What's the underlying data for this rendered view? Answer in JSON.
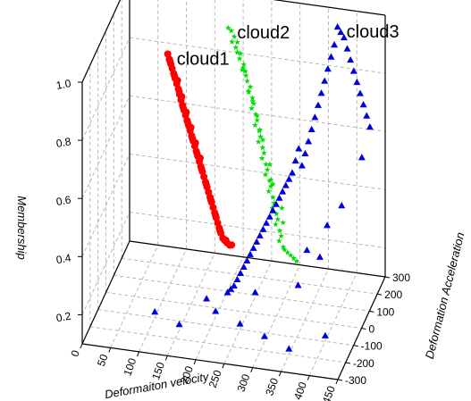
{
  "chart_data": {
    "type": "scatter",
    "projection": "3d",
    "title": "",
    "xlabel": "Deformaiton velocity",
    "ylabel": "Deformation Acceleration",
    "zlabel": "Membership",
    "xlim": [
      0,
      450
    ],
    "ylim": [
      -300,
      300
    ],
    "zlim": [
      0.1,
      1.0
    ],
    "xticks": [
      "0",
      "50",
      "100",
      "150",
      "200",
      "250",
      "300",
      "350",
      "400",
      "450"
    ],
    "yticks": [
      "-300",
      "-200",
      "-100",
      "0",
      "100",
      "200",
      "300"
    ],
    "zticks": [
      "0.2",
      "0.4",
      "0.6",
      "0.8",
      "1.0"
    ],
    "grid": true,
    "series": [
      {
        "name": "cloud1",
        "marker": "circle",
        "color": "#ff0000",
        "points": [
          [
            120,
            -80,
            1.0
          ],
          [
            122,
            -75,
            0.98
          ],
          [
            124,
            -70,
            0.96
          ],
          [
            125,
            -60,
            0.94
          ],
          [
            127,
            -55,
            0.92
          ],
          [
            129,
            -50,
            0.9
          ],
          [
            131,
            -45,
            0.88
          ],
          [
            133,
            -40,
            0.86
          ],
          [
            135,
            -38,
            0.84
          ],
          [
            137,
            -35,
            0.82
          ],
          [
            139,
            -30,
            0.8
          ],
          [
            141,
            -25,
            0.78
          ],
          [
            143,
            -20,
            0.76
          ],
          [
            145,
            -15,
            0.74
          ],
          [
            147,
            -10,
            0.72
          ],
          [
            149,
            -5,
            0.7
          ],
          [
            151,
            0,
            0.68
          ],
          [
            153,
            5,
            0.66
          ],
          [
            155,
            10,
            0.64
          ],
          [
            157,
            15,
            0.62
          ],
          [
            159,
            20,
            0.6
          ],
          [
            161,
            25,
            0.58
          ],
          [
            163,
            30,
            0.56
          ],
          [
            165,
            35,
            0.54
          ],
          [
            167,
            40,
            0.52
          ],
          [
            169,
            45,
            0.5
          ],
          [
            171,
            50,
            0.48
          ],
          [
            173,
            55,
            0.46
          ],
          [
            175,
            60,
            0.44
          ],
          [
            177,
            65,
            0.42
          ],
          [
            179,
            70,
            0.4
          ],
          [
            181,
            75,
            0.38
          ],
          [
            183,
            80,
            0.36
          ],
          [
            185,
            85,
            0.34
          ],
          [
            187,
            90,
            0.32
          ],
          [
            189,
            95,
            0.3
          ],
          [
            192,
            100,
            0.28
          ],
          [
            195,
            105,
            0.27
          ],
          [
            198,
            110,
            0.26
          ],
          [
            202,
            115,
            0.25
          ],
          [
            123,
            -72,
            0.97
          ],
          [
            128,
            -52,
            0.91
          ],
          [
            134,
            -36,
            0.85
          ],
          [
            140,
            -28,
            0.79
          ],
          [
            146,
            -12,
            0.73
          ],
          [
            152,
            2,
            0.67
          ],
          [
            158,
            18,
            0.61
          ],
          [
            164,
            32,
            0.55
          ],
          [
            170,
            48,
            0.49
          ],
          [
            176,
            62,
            0.43
          ],
          [
            182,
            78,
            0.37
          ],
          [
            188,
            92,
            0.31
          ],
          [
            196,
            108,
            0.27
          ],
          [
            205,
            118,
            0.25
          ],
          [
            162,
            28,
            0.59
          ],
          [
            156,
            12,
            0.65
          ],
          [
            150,
            -2,
            0.71
          ],
          [
            144,
            -18,
            0.77
          ],
          [
            138,
            -32,
            0.83
          ],
          [
            132,
            -42,
            0.89
          ]
        ]
      },
      {
        "name": "cloud2",
        "marker": "star",
        "color": "#00dd00",
        "points": [
          [
            200,
            110,
            1.0
          ],
          [
            205,
            112,
            0.99
          ],
          [
            210,
            115,
            0.97
          ],
          [
            215,
            118,
            0.95
          ],
          [
            212,
            120,
            0.93
          ],
          [
            220,
            122,
            0.91
          ],
          [
            218,
            125,
            0.89
          ],
          [
            225,
            128,
            0.87
          ],
          [
            222,
            130,
            0.85
          ],
          [
            228,
            133,
            0.83
          ],
          [
            230,
            135,
            0.81
          ],
          [
            235,
            138,
            0.79
          ],
          [
            232,
            140,
            0.77
          ],
          [
            238,
            143,
            0.75
          ],
          [
            240,
            145,
            0.73
          ],
          [
            236,
            148,
            0.71
          ],
          [
            243,
            150,
            0.69
          ],
          [
            245,
            152,
            0.67
          ],
          [
            241,
            155,
            0.65
          ],
          [
            248,
            158,
            0.63
          ],
          [
            250,
            160,
            0.61
          ],
          [
            246,
            162,
            0.59
          ],
          [
            253,
            165,
            0.57
          ],
          [
            255,
            168,
            0.55
          ],
          [
            251,
            170,
            0.53
          ],
          [
            258,
            172,
            0.51
          ],
          [
            260,
            175,
            0.49
          ],
          [
            256,
            178,
            0.47
          ],
          [
            263,
            180,
            0.45
          ],
          [
            265,
            182,
            0.43
          ],
          [
            261,
            185,
            0.41
          ],
          [
            268,
            188,
            0.39
          ],
          [
            270,
            190,
            0.37
          ],
          [
            266,
            192,
            0.35
          ],
          [
            273,
            195,
            0.33
          ],
          [
            275,
            198,
            0.31
          ],
          [
            271,
            200,
            0.29
          ],
          [
            278,
            202,
            0.27
          ],
          [
            280,
            205,
            0.25
          ],
          [
            276,
            208,
            0.23
          ],
          [
            283,
            210,
            0.21
          ],
          [
            285,
            212,
            0.2
          ],
          [
            290,
            215,
            0.19
          ],
          [
            295,
            218,
            0.18
          ],
          [
            300,
            220,
            0.17
          ],
          [
            305,
            222,
            0.16
          ],
          [
            208,
            100,
            0.96
          ],
          [
            224,
            125,
            0.86
          ],
          [
            239,
            140,
            0.74
          ],
          [
            254,
            160,
            0.6
          ],
          [
            269,
            180,
            0.44
          ],
          [
            284,
            200,
            0.3
          ],
          [
            226,
            140,
            0.84
          ],
          [
            244,
            160,
            0.68
          ],
          [
            262,
            190,
            0.5
          ],
          [
            280,
            215,
            0.34
          ],
          [
            216,
            110,
            0.92
          ],
          [
            233,
            130,
            0.78
          ],
          [
            250,
            150,
            0.64
          ],
          [
            267,
            170,
            0.46
          ]
        ]
      },
      {
        "name": "cloud3",
        "marker": "triangle",
        "color": "#0000dd",
        "points": [
          [
            380,
            200,
            1.0
          ],
          [
            385,
            205,
            0.98
          ],
          [
            390,
            210,
            0.96
          ],
          [
            375,
            195,
            0.94
          ],
          [
            395,
            215,
            0.92
          ],
          [
            370,
            190,
            0.9
          ],
          [
            400,
            220,
            0.88
          ],
          [
            365,
            185,
            0.86
          ],
          [
            405,
            225,
            0.84
          ],
          [
            360,
            180,
            0.82
          ],
          [
            410,
            230,
            0.8
          ],
          [
            355,
            175,
            0.78
          ],
          [
            415,
            235,
            0.76
          ],
          [
            350,
            170,
            0.74
          ],
          [
            420,
            240,
            0.72
          ],
          [
            345,
            165,
            0.7
          ],
          [
            425,
            245,
            0.68
          ],
          [
            340,
            160,
            0.66
          ],
          [
            430,
            250,
            0.64
          ],
          [
            335,
            155,
            0.62
          ],
          [
            320,
            140,
            0.6
          ],
          [
            330,
            150,
            0.58
          ],
          [
            315,
            135,
            0.56
          ],
          [
            325,
            145,
            0.54
          ],
          [
            310,
            130,
            0.52
          ],
          [
            305,
            125,
            0.5
          ],
          [
            300,
            120,
            0.48
          ],
          [
            295,
            115,
            0.46
          ],
          [
            290,
            110,
            0.44
          ],
          [
            285,
            105,
            0.42
          ],
          [
            280,
            100,
            0.4
          ],
          [
            275,
            95,
            0.38
          ],
          [
            270,
            90,
            0.36
          ],
          [
            265,
            85,
            0.34
          ],
          [
            260,
            80,
            0.32
          ],
          [
            255,
            75,
            0.3
          ],
          [
            250,
            70,
            0.28
          ],
          [
            245,
            65,
            0.26
          ],
          [
            240,
            60,
            0.24
          ],
          [
            235,
            55,
            0.22
          ],
          [
            230,
            50,
            0.2
          ],
          [
            225,
            45,
            0.18
          ],
          [
            220,
            40,
            0.16
          ],
          [
            215,
            35,
            0.15
          ],
          [
            210,
            30,
            0.14
          ],
          [
            100,
            -100,
            0.12
          ],
          [
            150,
            -150,
            0.12
          ],
          [
            200,
            -50,
            0.12
          ],
          [
            250,
            -100,
            0.12
          ],
          [
            300,
            -150,
            0.12
          ],
          [
            350,
            -200,
            0.12
          ],
          [
            400,
            -100,
            0.12
          ],
          [
            180,
            -20,
            0.14
          ],
          [
            260,
            20,
            0.16
          ],
          [
            330,
            60,
            0.18
          ],
          [
            360,
            120,
            0.25
          ],
          [
            390,
            180,
            0.4
          ],
          [
            420,
            220,
            0.55
          ],
          [
            370,
            140,
            0.35
          ],
          [
            340,
            100,
            0.28
          ]
        ]
      }
    ]
  }
}
